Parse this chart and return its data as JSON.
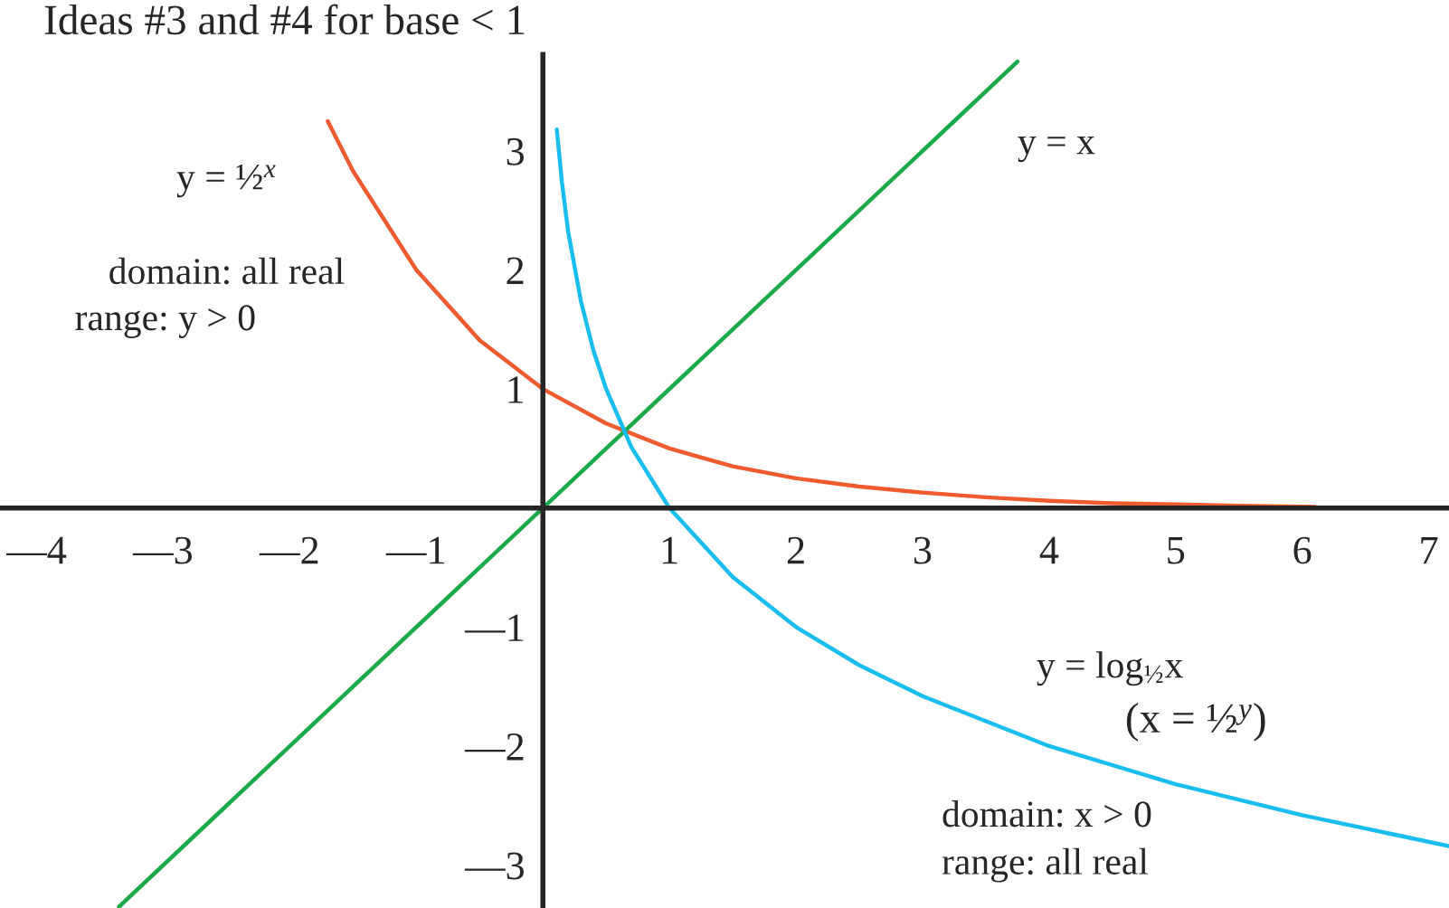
{
  "chart_data": {
    "type": "line",
    "title": "Ideas #3 and #4 for base < 1",
    "xlim": [
      -4.29,
      7.16
    ],
    "ylim": [
      -3.36,
      3.81
    ],
    "xticks": [
      {
        "value": -4,
        "label": "—4"
      },
      {
        "value": -3,
        "label": "—3"
      },
      {
        "value": -2,
        "label": "—2"
      },
      {
        "value": -1,
        "label": "—1"
      },
      1,
      2,
      3,
      4,
      5,
      6,
      7
    ],
    "yticks": [
      {
        "value": -3,
        "label": "—3"
      },
      {
        "value": -2,
        "label": "—2"
      },
      {
        "value": -1,
        "label": "—1"
      },
      1,
      2,
      3
    ],
    "grid": false,
    "legend": false,
    "marker": "none",
    "line_style": "solid",
    "series": [
      {
        "name": "y = ½$^{x}$",
        "color": "#ef5a2f",
        "x": [
          -1.7,
          -1.5,
          -1,
          -0.5,
          0,
          0.5,
          1,
          1.5,
          2,
          2.5,
          3,
          3.5,
          4,
          4.5,
          5,
          5.5,
          6.1
        ],
        "values": [
          3.25,
          2.83,
          2,
          1.41,
          1,
          0.71,
          0.5,
          0.35,
          0.25,
          0.18,
          0.13,
          0.09,
          0.06,
          0.04,
          0.03,
          0.02,
          0.01
        ]
      },
      {
        "name": "y = x",
        "color": "#1aaa4a",
        "x": [
          -3.35,
          3.75
        ],
        "values": [
          -3.35,
          3.75
        ]
      },
      {
        "name": "y = log$_{½}$x",
        "color": "#19bdef",
        "x": [
          0.11,
          0.15,
          0.2,
          0.3,
          0.4,
          0.5,
          0.7,
          1,
          1.5,
          2,
          2.5,
          3,
          4,
          5,
          6,
          7.16
        ],
        "values": [
          3.18,
          2.74,
          2.32,
          1.74,
          1.32,
          1,
          0.51,
          0,
          -0.58,
          -1,
          -1.32,
          -1.58,
          -2,
          -2.32,
          -2.58,
          -2.84
        ]
      }
    ],
    "annotations": [
      "domain: all real",
      "range: y > 0",
      "(x = ½$^{y}$)",
      "domain: x > 0",
      "range: all real"
    ]
  }
}
